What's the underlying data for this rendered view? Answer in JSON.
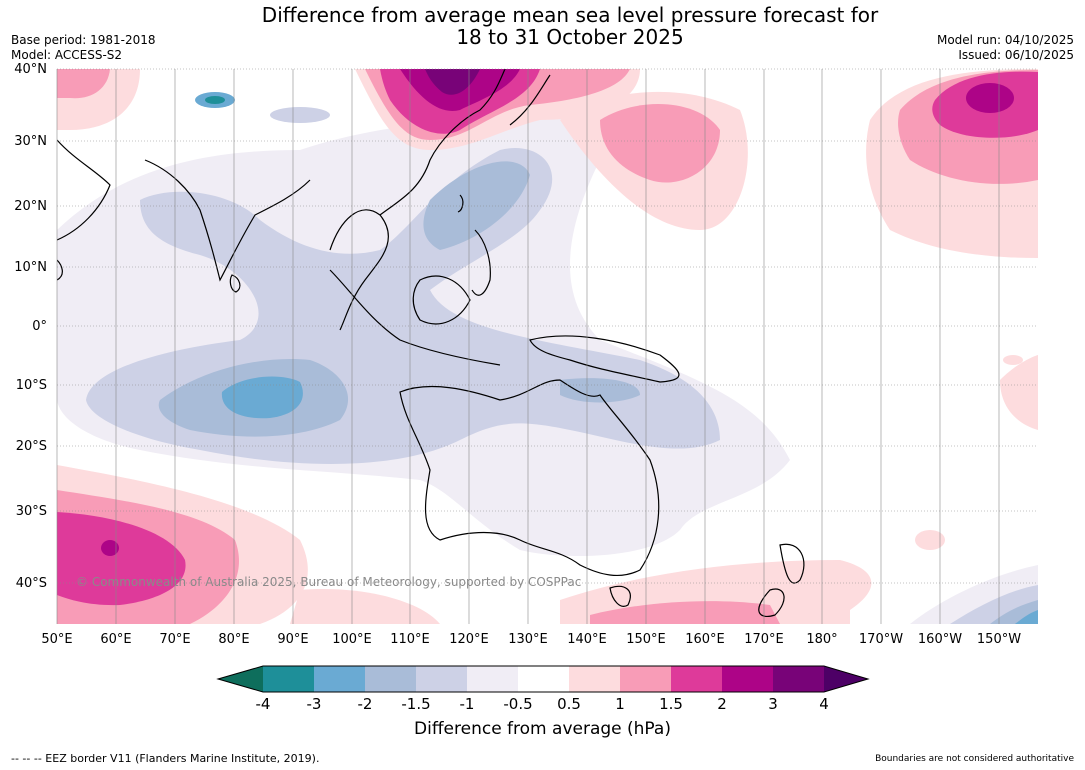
{
  "title_line1": "Difference from average mean sea level pressure forecast for",
  "title_line2": "18 to 31 October 2025",
  "meta_left": {
    "base_period": "Base period: 1981-2018",
    "model": "Model: ACCESS-S2"
  },
  "meta_right": {
    "model_run": "Model run: 04/10/2025",
    "issued": "Issued: 06/10/2025"
  },
  "lat_labels": [
    "40°N",
    "30°N",
    "20°N",
    "10°N",
    "0°",
    "10°S",
    "20°S",
    "30°S",
    "40°S"
  ],
  "lon_labels": [
    "50°E",
    "60°E",
    "70°E",
    "80°E",
    "90°E",
    "100°E",
    "110°E",
    "120°E",
    "130°E",
    "140°E",
    "150°E",
    "160°E",
    "170°E",
    "180°",
    "170°W",
    "160°W",
    "150°W"
  ],
  "copyright": "© Commonwealth of Australia 2025, Bureau of Meteorology, supported by COSPPac",
  "colorbar": {
    "ticks": [
      "-4",
      "-3",
      "-2",
      "-1.5",
      "-1",
      "-0.5",
      "0.5",
      "1",
      "1.5",
      "2",
      "3",
      "4"
    ],
    "colors": [
      "#0e6e5c",
      "#1e8f99",
      "#6aaad3",
      "#a9bcd8",
      "#cdd1e6",
      "#f0edf5",
      "#ffffff",
      "#fddcde",
      "#f89cb7",
      "#de3a9a",
      "#ad0487",
      "#780378",
      "#4d0066"
    ],
    "label": "Difference from average (hPa)"
  },
  "footer": {
    "eez": "--  --  -- EEZ border V11 (Flanders Marine Institute, 2019).",
    "boundaries": "Boundaries are not considered authoritative"
  }
}
